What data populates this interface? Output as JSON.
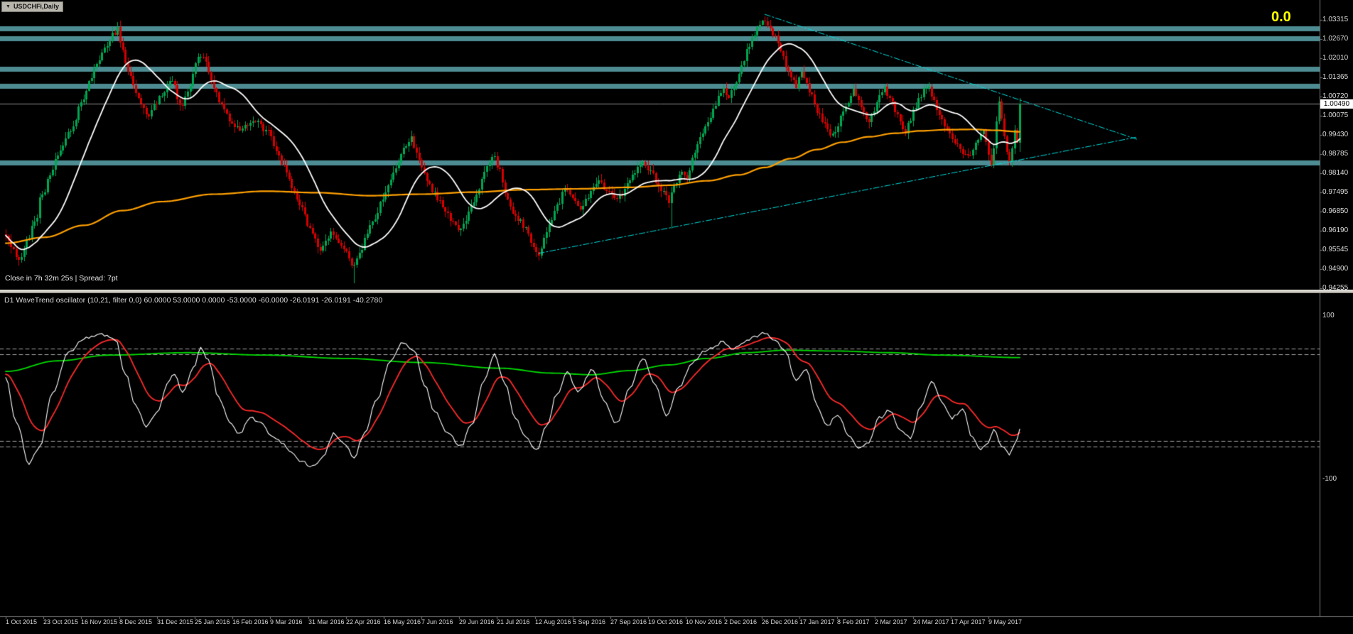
{
  "titlebar": {
    "symbol": "USDCHFi,Daily"
  },
  "main_chart": {
    "status_line": "Close in 7h 32m 25s | Spread: 7pt",
    "fib_label": "0.0",
    "current_price_tag": "1.00490",
    "current_price": 1.0049,
    "price_axis_labels": [
      "1.03315",
      "1.02670",
      "1.02010",
      "1.01365",
      "1.00720",
      "1.00075",
      "0.99430",
      "0.98785",
      "0.98140",
      "0.97495",
      "0.96850",
      "0.96190",
      "0.95545",
      "0.94900",
      "0.94255"
    ],
    "sr_bands_prices": [
      1.0304,
      1.0269,
      1.0166,
      1.0109,
      0.9852
    ],
    "trendlines": [
      {
        "name": "descending-wedge-line",
        "b1": 292,
        "p1": 1.035,
        "b2": 435,
        "p2": 0.993
      },
      {
        "name": "ascending-wedge-line",
        "b1": 205,
        "p1": 0.9546,
        "b2": 435,
        "p2": 0.9937
      }
    ]
  },
  "indicator": {
    "header": "D1 WaveTrend oscillator (10,21, filter 0,0) 60.0000 53.0000 0.0000 -53.0000 -60.0000 -26.0191 -26.0191 -40.2780",
    "scale_top": "100",
    "scale_bottom": "-100",
    "levels": [
      60,
      53,
      -53,
      -60
    ]
  },
  "time_axis": {
    "labels": [
      "1 Oct 2015",
      "23 Oct 2015",
      "16 Nov 2015",
      "8 Dec 2015",
      "31 Dec 2015",
      "25 Jan 2016",
      "16 Feb 2016",
      "9 Mar 2016",
      "31 Mar 2016",
      "22 Apr 2016",
      "16 May 2016",
      "7 Jun 2016",
      "29 Jun 2016",
      "21 Jul 2016",
      "12 Aug 2016",
      "5 Sep 2016",
      "27 Sep 2016",
      "19 Oct 2016",
      "10 Nov 2016",
      "2 Dec 2016",
      "26 Dec 2016",
      "17 Jan 2017",
      "8 Feb 2017",
      "2 Mar 2017",
      "24 Mar 2017",
      "17 Apr 2017",
      "9 May 2017"
    ]
  },
  "chart_data": {
    "type": "candlestick",
    "symbol": "USDCHF",
    "timeframe": "Daily",
    "bar_count": 391,
    "price_range": [
      0.94255,
      1.03315
    ],
    "close_keypoints": [
      [
        0,
        0.96
      ],
      [
        3,
        0.955
      ],
      [
        5,
        0.952
      ],
      [
        8,
        0.9585
      ],
      [
        11,
        0.9645
      ],
      [
        14,
        0.975
      ],
      [
        17,
        0.98
      ],
      [
        20,
        0.988
      ],
      [
        23,
        0.993
      ],
      [
        26,
        0.998
      ],
      [
        29,
        1.005
      ],
      [
        32,
        1.012
      ],
      [
        35,
        1.018
      ],
      [
        38,
        1.023
      ],
      [
        41,
        1.028
      ],
      [
        43,
        1.03
      ],
      [
        45,
        1.022
      ],
      [
        47,
        1.015
      ],
      [
        50,
        1.009
      ],
      [
        53,
        1.004
      ],
      [
        55,
        1.001
      ],
      [
        58,
        1.005
      ],
      [
        60,
        1.008
      ],
      [
        62,
        1.011
      ],
      [
        64,
        1.013
      ],
      [
        66,
        1.007
      ],
      [
        68,
        1.004
      ],
      [
        70,
        1.009
      ],
      [
        72,
        1.015
      ],
      [
        74,
        1.02
      ],
      [
        76,
        1.021
      ],
      [
        78,
        1.016
      ],
      [
        80,
        1.01
      ],
      [
        82,
        1.006
      ],
      [
        84,
        1.002
      ],
      [
        87,
        0.998
      ],
      [
        90,
        0.996
      ],
      [
        93,
        0.9975
      ],
      [
        96,
        0.999
      ],
      [
        99,
        0.9965
      ],
      [
        101,
        0.995
      ],
      [
        104,
        0.99
      ],
      [
        106,
        0.985
      ],
      [
        109,
        0.98
      ],
      [
        111,
        0.975
      ],
      [
        114,
        0.969
      ],
      [
        116,
        0.964
      ],
      [
        119,
        0.959
      ],
      [
        121,
        0.956
      ],
      [
        123,
        0.9585
      ],
      [
        125,
        0.961
      ],
      [
        127,
        0.959
      ],
      [
        130,
        0.956
      ],
      [
        132,
        0.953
      ],
      [
        134,
        0.95
      ],
      [
        136,
        0.954
      ],
      [
        138,
        0.959
      ],
      [
        140,
        0.963
      ],
      [
        142,
        0.967
      ],
      [
        145,
        0.973
      ],
      [
        147,
        0.978
      ],
      [
        150,
        0.984
      ],
      [
        152,
        0.988
      ],
      [
        154,
        0.991
      ],
      [
        156,
        0.993
      ],
      [
        158,
        0.989
      ],
      [
        160,
        0.984
      ],
      [
        162,
        0.98
      ],
      [
        164,
        0.976
      ],
      [
        167,
        0.972
      ],
      [
        169,
        0.969
      ],
      [
        172,
        0.965
      ],
      [
        174,
        0.962
      ],
      [
        176,
        0.965
      ],
      [
        179,
        0.97
      ],
      [
        182,
        0.977
      ],
      [
        184,
        0.981
      ],
      [
        186,
        0.985
      ],
      [
        188,
        0.987
      ],
      [
        190,
        0.982
      ],
      [
        192,
        0.976
      ],
      [
        194,
        0.971
      ],
      [
        196,
        0.967
      ],
      [
        198,
        0.965
      ],
      [
        200,
        0.963
      ],
      [
        202,
        0.959
      ],
      [
        205,
        0.954
      ],
      [
        207,
        0.959
      ],
      [
        209,
        0.965
      ],
      [
        212,
        0.971
      ],
      [
        215,
        0.976
      ],
      [
        218,
        0.973
      ],
      [
        221,
        0.97
      ],
      [
        224,
        0.974
      ],
      [
        228,
        0.979
      ],
      [
        231,
        0.976
      ],
      [
        235,
        0.972
      ],
      [
        237,
        0.975
      ],
      [
        240,
        0.979
      ],
      [
        242,
        0.982
      ],
      [
        245,
        0.986
      ],
      [
        248,
        0.982
      ],
      [
        251,
        0.978
      ],
      [
        253,
        0.975
      ],
      [
        255,
        0.972
      ],
      [
        257,
        0.977
      ],
      [
        260,
        0.983
      ],
      [
        262,
        0.979
      ],
      [
        264,
        0.987
      ],
      [
        266,
        0.991
      ],
      [
        268,
        0.995
      ],
      [
        270,
        0.999
      ],
      [
        272,
        1.003
      ],
      [
        274,
        1.007
      ],
      [
        276,
        1.01
      ],
      [
        278,
        1.007
      ],
      [
        280,
        1.011
      ],
      [
        282,
        1.015
      ],
      [
        284,
        1.02
      ],
      [
        286,
        1.025
      ],
      [
        288,
        1.029
      ],
      [
        290,
        1.032
      ],
      [
        292,
        1.033
      ],
      [
        294,
        1.03
      ],
      [
        296,
        1.027
      ],
      [
        298,
        1.022
      ],
      [
        300,
        1.018
      ],
      [
        302,
        1.014
      ],
      [
        304,
        1.011
      ],
      [
        306,
        1.015
      ],
      [
        308,
        1.011
      ],
      [
        310,
        1.007
      ],
      [
        312,
        1.003
      ],
      [
        314,
        0.999
      ],
      [
        316,
        0.996
      ],
      [
        318,
        0.9945
      ],
      [
        320,
        0.998
      ],
      [
        322,
        1.002
      ],
      [
        324,
        1.006
      ],
      [
        326,
        1.009
      ],
      [
        328,
        1.006
      ],
      [
        330,
        1.002
      ],
      [
        332,
        0.999
      ],
      [
        334,
        1.003
      ],
      [
        336,
        1.007
      ],
      [
        338,
        1.01
      ],
      [
        340,
        1.007
      ],
      [
        342,
        1.003
      ],
      [
        344,
        0.999
      ],
      [
        346,
        0.996
      ],
      [
        348,
        1.0
      ],
      [
        350,
        1.004
      ],
      [
        352,
        1.008
      ],
      [
        354,
        1.011
      ],
      [
        356,
        1.008
      ],
      [
        358,
        1.004
      ],
      [
        360,
        1.0
      ],
      [
        362,
        0.997
      ],
      [
        364,
        0.994
      ],
      [
        366,
        0.991
      ],
      [
        368,
        0.989
      ],
      [
        370,
        0.987
      ],
      [
        372,
        0.99
      ],
      [
        374,
        0.993
      ],
      [
        376,
        0.996
      ],
      [
        377,
        0.992
      ],
      [
        378,
        0.988
      ],
      [
        379,
        0.9845
      ],
      [
        380,
        0.99
      ],
      [
        381,
        0.999
      ],
      [
        382,
        1.0055
      ],
      [
        383,
        1.0
      ],
      [
        384,
        0.994
      ],
      [
        385,
        0.989
      ],
      [
        386,
        0.9855
      ],
      [
        387,
        0.99
      ],
      [
        388,
        0.996
      ],
      [
        389,
        0.992
      ],
      [
        390,
        1.0049
      ]
    ],
    "wick_events": [
      {
        "bar": 5,
        "low": 0.9505
      },
      {
        "bar": 44,
        "high": 1.0328
      },
      {
        "bar": 134,
        "low": 0.9445
      },
      {
        "bar": 205,
        "low": 0.9522
      },
      {
        "bar": 256,
        "low": 0.9628
      },
      {
        "bar": 292,
        "high": 1.0344
      },
      {
        "bar": 379,
        "low": 0.9838
      },
      {
        "bar": 386,
        "low": 0.9842
      },
      {
        "bar": 390,
        "high": 1.0068,
        "low": 0.9888
      }
    ],
    "ma_fast": {
      "type": "SMA",
      "period": 20
    },
    "ma_slow": {
      "type": "keypoint-curve",
      "keypoints": [
        [
          0,
          0.958
        ],
        [
          15,
          0.96
        ],
        [
          30,
          0.964
        ],
        [
          45,
          0.969
        ],
        [
          60,
          0.972
        ],
        [
          80,
          0.9745
        ],
        [
          100,
          0.9755
        ],
        [
          120,
          0.975
        ],
        [
          140,
          0.974
        ],
        [
          160,
          0.9745
        ],
        [
          180,
          0.9752
        ],
        [
          200,
          0.976
        ],
        [
          220,
          0.9763
        ],
        [
          240,
          0.9768
        ],
        [
          255,
          0.9775
        ],
        [
          270,
          0.979
        ],
        [
          282,
          0.981
        ],
        [
          292,
          0.9835
        ],
        [
          302,
          0.9865
        ],
        [
          312,
          0.9895
        ],
        [
          322,
          0.992
        ],
        [
          332,
          0.9938
        ],
        [
          342,
          0.995
        ],
        [
          352,
          0.9958
        ],
        [
          362,
          0.9962
        ],
        [
          372,
          0.9963
        ],
        [
          380,
          0.996
        ],
        [
          390,
          0.9955
        ]
      ]
    },
    "oscillator": {
      "type": "line",
      "series": [
        "WT fast (white)",
        "WT slow (red)",
        "WT filter (green)"
      ],
      "white_keypoints": [
        [
          0,
          25
        ],
        [
          4,
          -30
        ],
        [
          9,
          -80
        ],
        [
          13,
          -62
        ],
        [
          18,
          5
        ],
        [
          24,
          55
        ],
        [
          30,
          72
        ],
        [
          36,
          78
        ],
        [
          42,
          72
        ],
        [
          46,
          30
        ],
        [
          50,
          -10
        ],
        [
          54,
          -35
        ],
        [
          58,
          -20
        ],
        [
          62,
          15
        ],
        [
          65,
          30
        ],
        [
          68,
          5
        ],
        [
          72,
          35
        ],
        [
          75,
          60
        ],
        [
          78,
          45
        ],
        [
          82,
          0
        ],
        [
          86,
          -30
        ],
        [
          90,
          -45
        ],
        [
          94,
          -25
        ],
        [
          98,
          -30
        ],
        [
          102,
          -45
        ],
        [
          106,
          -55
        ],
        [
          110,
          -68
        ],
        [
          114,
          -78
        ],
        [
          118,
          -85
        ],
        [
          122,
          -72
        ],
        [
          126,
          -45
        ],
        [
          130,
          -55
        ],
        [
          134,
          -72
        ],
        [
          138,
          -45
        ],
        [
          143,
          0
        ],
        [
          148,
          45
        ],
        [
          153,
          68
        ],
        [
          157,
          58
        ],
        [
          161,
          15
        ],
        [
          165,
          -18
        ],
        [
          170,
          -42
        ],
        [
          175,
          -60
        ],
        [
          179,
          -35
        ],
        [
          184,
          20
        ],
        [
          188,
          52
        ],
        [
          192,
          18
        ],
        [
          196,
          -25
        ],
        [
          200,
          -48
        ],
        [
          204,
          -65
        ],
        [
          208,
          -35
        ],
        [
          212,
          5
        ],
        [
          216,
          32
        ],
        [
          220,
          8
        ],
        [
          226,
          35
        ],
        [
          230,
          -5
        ],
        [
          235,
          -32
        ],
        [
          240,
          12
        ],
        [
          245,
          48
        ],
        [
          250,
          15
        ],
        [
          254,
          -22
        ],
        [
          259,
          12
        ],
        [
          264,
          42
        ],
        [
          268,
          55
        ],
        [
          272,
          62
        ],
        [
          276,
          68
        ],
        [
          280,
          60
        ],
        [
          284,
          68
        ],
        [
          288,
          75
        ],
        [
          292,
          80
        ],
        [
          296,
          70
        ],
        [
          300,
          55
        ],
        [
          304,
          20
        ],
        [
          308,
          35
        ],
        [
          312,
          -10
        ],
        [
          316,
          -35
        ],
        [
          320,
          -20
        ],
        [
          324,
          -45
        ],
        [
          328,
          -60
        ],
        [
          332,
          -55
        ],
        [
          336,
          -25
        ],
        [
          340,
          -15
        ],
        [
          344,
          -40
        ],
        [
          348,
          -50
        ],
        [
          352,
          -10
        ],
        [
          356,
          20
        ],
        [
          360,
          -5
        ],
        [
          364,
          -25
        ],
        [
          368,
          -15
        ],
        [
          372,
          -50
        ],
        [
          375,
          -62
        ],
        [
          378,
          -55
        ],
        [
          380,
          -40
        ],
        [
          383,
          -58
        ],
        [
          386,
          -70
        ],
        [
          388,
          -58
        ],
        [
          390,
          -40.3
        ]
      ],
      "green_keypoints": [
        [
          0,
          32
        ],
        [
          20,
          45
        ],
        [
          40,
          52
        ],
        [
          70,
          55
        ],
        [
          100,
          52
        ],
        [
          130,
          48
        ],
        [
          160,
          43
        ],
        [
          190,
          36
        ],
        [
          210,
          30
        ],
        [
          225,
          28
        ],
        [
          240,
          33
        ],
        [
          255,
          40
        ],
        [
          270,
          48
        ],
        [
          285,
          55
        ],
        [
          300,
          58
        ],
        [
          320,
          57
        ],
        [
          340,
          55
        ],
        [
          360,
          52
        ],
        [
          390,
          49
        ]
      ],
      "red_ema_period": 12
    }
  },
  "colors": {
    "bg": "#000000",
    "up": "#00a651",
    "down": "#d60000",
    "ma_fast": "#ffffff",
    "ma_slow": "#ffa000",
    "band": "#4d8c92",
    "trend": "#00dfdf",
    "price_line": "#909090",
    "axis_line": "#7a7a7a",
    "osc_white": "#ffffff",
    "osc_red": "#ff2a2a",
    "osc_green": "#00dc00",
    "level_dash": "#a8a8a8",
    "accent_yellow": "#ffff00"
  }
}
